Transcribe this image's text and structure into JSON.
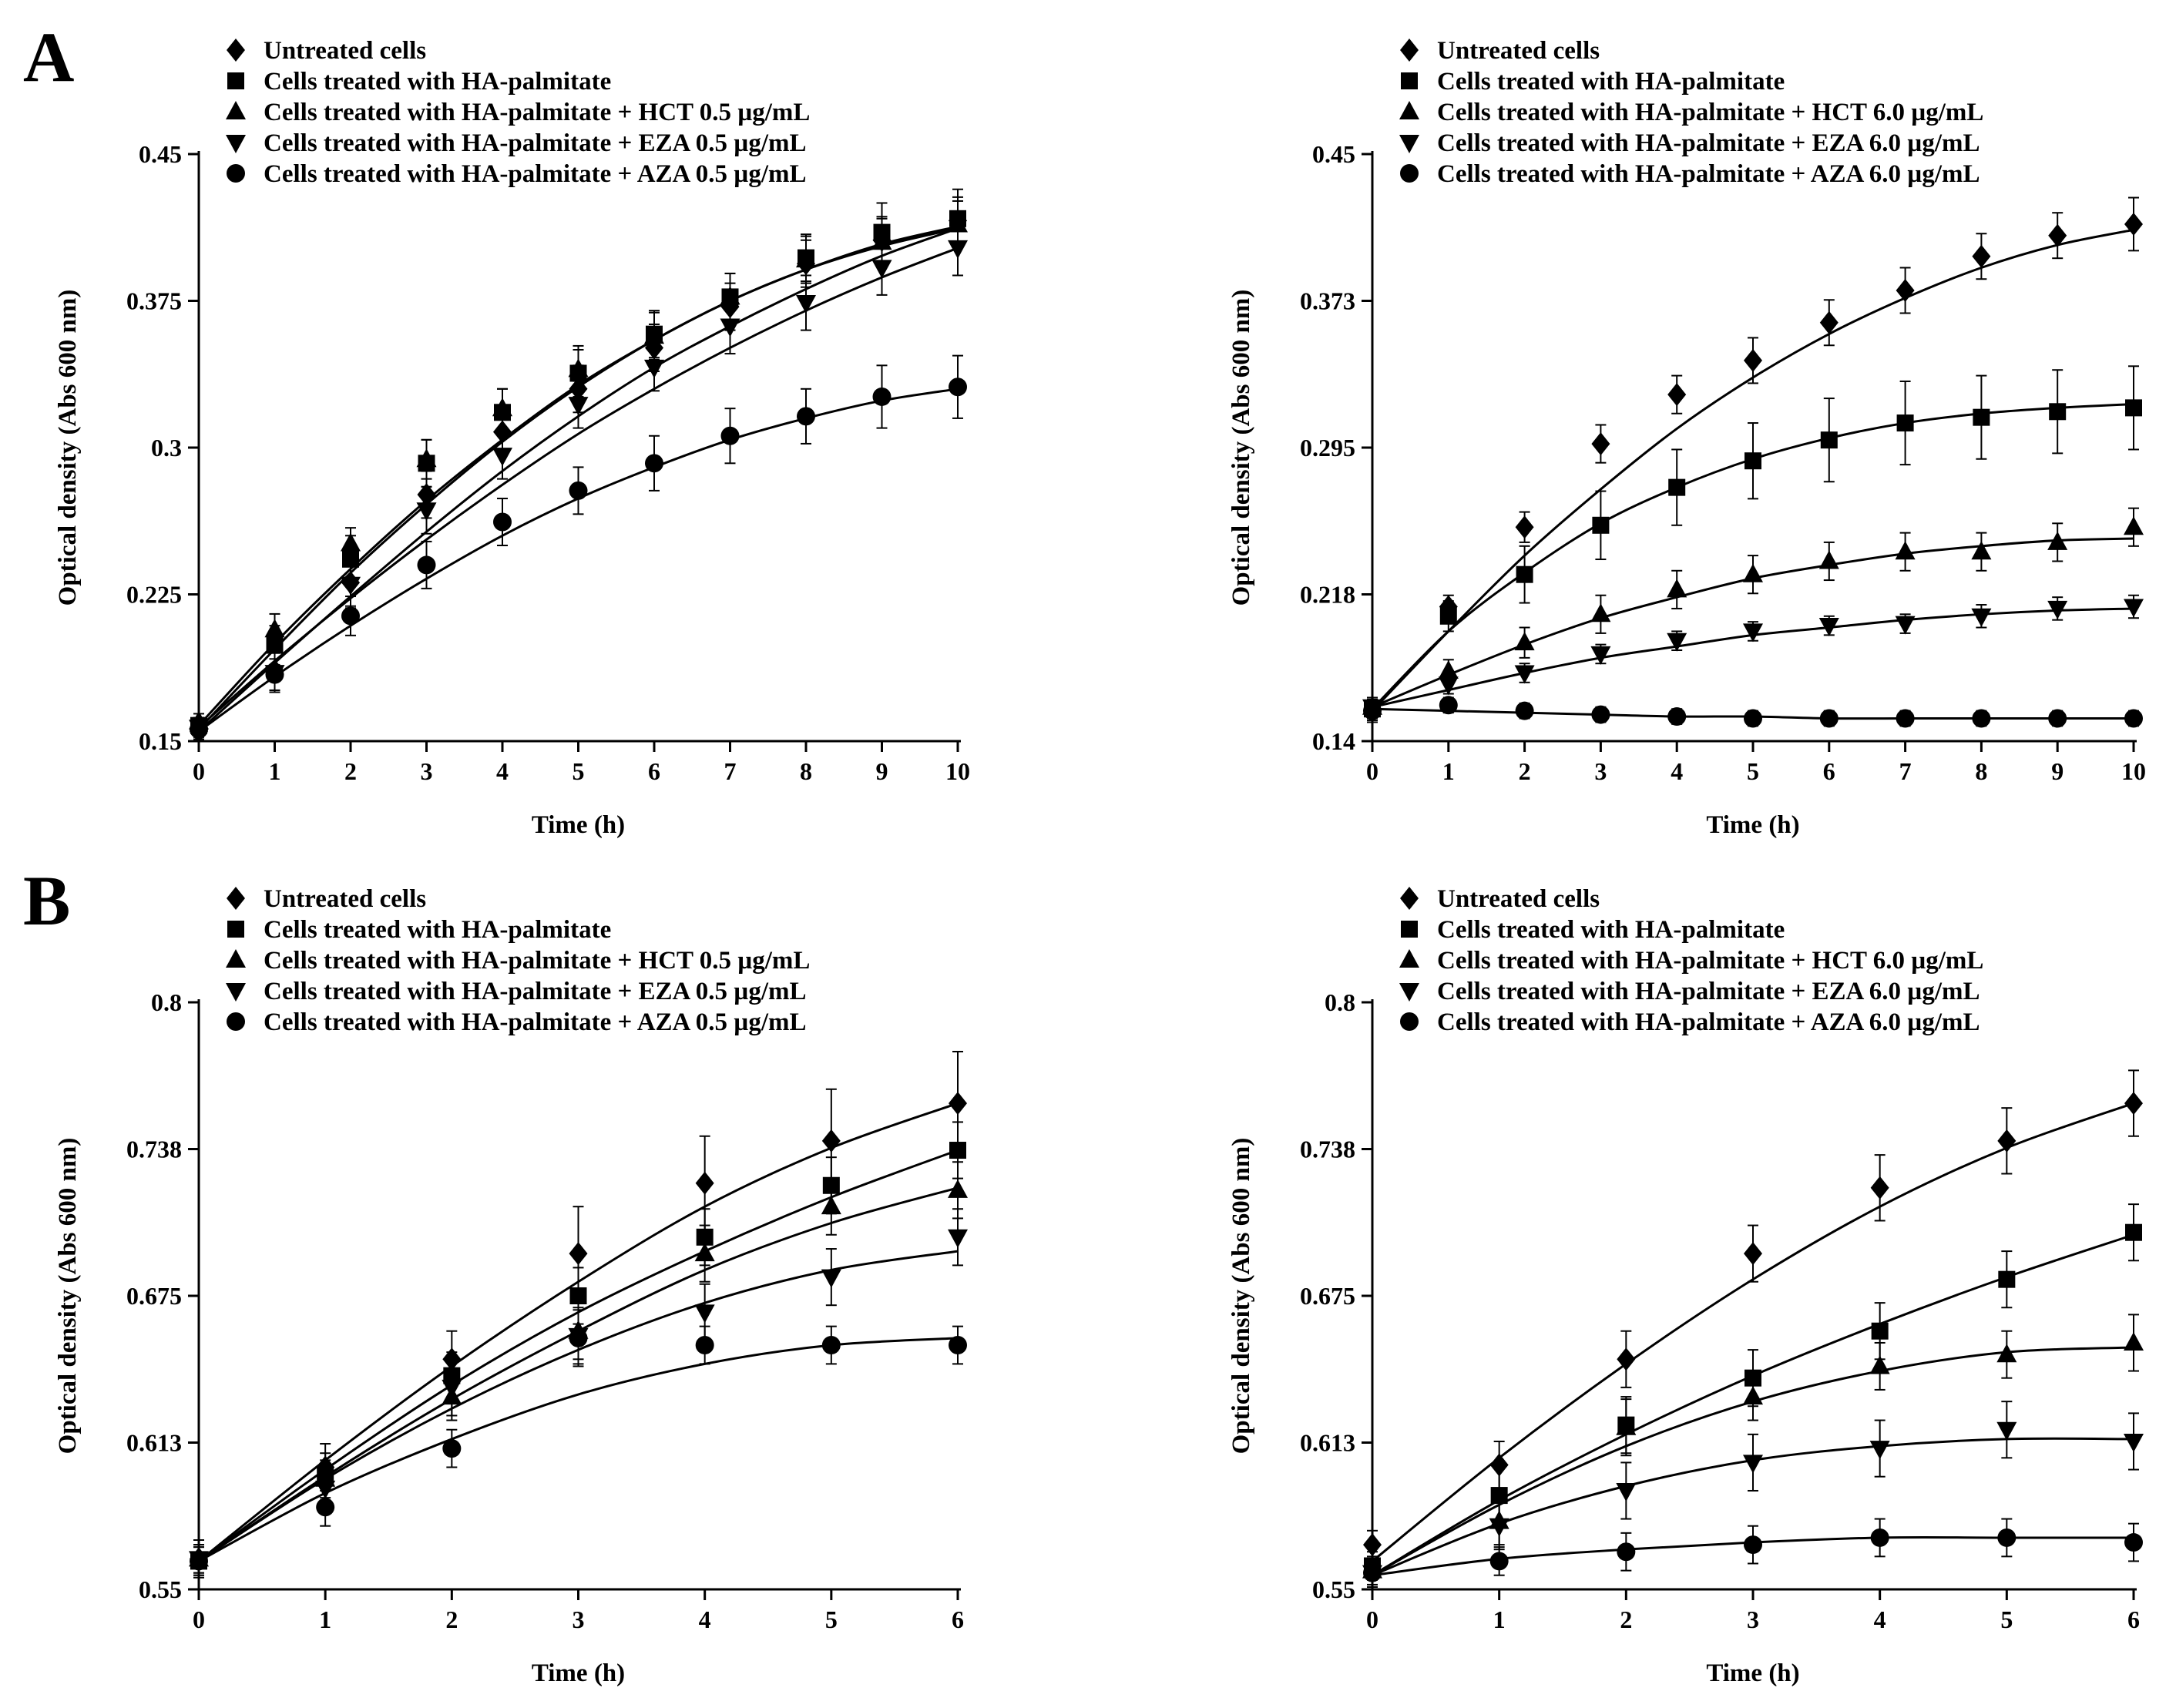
{
  "panel_labels": [
    "A",
    "B"
  ],
  "chart_data": [
    {
      "id": "A-left",
      "type": "line",
      "panel": "A",
      "title": "",
      "xlabel": "Time (h)",
      "ylabel": "Optical density (Abs 600 nm)",
      "xlim": [
        0,
        10
      ],
      "ylim": [
        0.15,
        0.45
      ],
      "xticks": [
        "0",
        "1",
        "2",
        "3",
        "4",
        "5",
        "6",
        "7",
        "8",
        "9",
        "10"
      ],
      "yticks": [
        "0.15",
        "0.225",
        "0.3",
        "0.375",
        "0.45"
      ],
      "legend": [
        "Untreated cells",
        "Cells treated with HA-palmitate",
        "Cells treated with HA-palmitate + HCT 0.5 µg/mL",
        "Cells treated with HA-palmitate + EZA 0.5 µg/mL",
        "Cells treated with HA-palmitate + AZA 0.5 µg/mL"
      ],
      "x": [
        0,
        1,
        2,
        3,
        4,
        5,
        6,
        7,
        8,
        9,
        10
      ],
      "series": [
        {
          "name": "Untreated cells",
          "marker": "diamond",
          "values": [
            0.155,
            0.186,
            0.231,
            0.276,
            0.308,
            0.33,
            0.351,
            0.372,
            0.394,
            0.406,
            0.416
          ],
          "errors": [
            0.004,
            0.01,
            0.012,
            0.012,
            0.012,
            0.012,
            0.012,
            0.012,
            0.012,
            0.012,
            0.012
          ]
        },
        {
          "name": "Cells treated with HA-palmitate",
          "marker": "square",
          "values": [
            0.158,
            0.199,
            0.243,
            0.292,
            0.318,
            0.338,
            0.358,
            0.377,
            0.397,
            0.41,
            0.417
          ],
          "errors": [
            0.004,
            0.01,
            0.012,
            0.012,
            0.012,
            0.012,
            0.012,
            0.012,
            0.012,
            0.015,
            0.015
          ]
        },
        {
          "name": "Cells treated with HA-palmitate + HCT 0.5 µg/mL",
          "marker": "triangle-up",
          "values": [
            0.16,
            0.207,
            0.251,
            0.294,
            0.32,
            0.34,
            0.357,
            0.377,
            0.396,
            0.405,
            0.414
          ],
          "errors": [
            0.004,
            0.008,
            0.008,
            0.01,
            0.01,
            0.012,
            0.012,
            0.012,
            0.012,
            0.012,
            0.012
          ]
        },
        {
          "name": "Cells treated with HA-palmitate + EZA 0.5 µg/mL",
          "marker": "triangle-down",
          "values": [
            0.157,
            0.185,
            0.23,
            0.268,
            0.296,
            0.322,
            0.341,
            0.362,
            0.374,
            0.392,
            0.402
          ],
          "errors": [
            0.004,
            0.01,
            0.012,
            0.012,
            0.012,
            0.012,
            0.012,
            0.014,
            0.014,
            0.014,
            0.014
          ]
        },
        {
          "name": "Cells treated with HA-palmitate + AZA 0.5 µg/mL",
          "marker": "circle",
          "values": [
            0.156,
            0.184,
            0.214,
            0.24,
            0.262,
            0.278,
            0.292,
            0.306,
            0.316,
            0.326,
            0.331
          ],
          "errors": [
            0.004,
            0.008,
            0.01,
            0.012,
            0.012,
            0.012,
            0.014,
            0.014,
            0.014,
            0.016,
            0.016
          ]
        }
      ],
      "fits": [
        [
          0.155,
          0.19,
          0.224,
          0.257,
          0.288,
          0.316,
          0.341,
          0.362,
          0.381,
          0.398,
          0.412
        ],
        [
          0.156,
          0.197,
          0.236,
          0.271,
          0.303,
          0.331,
          0.355,
          0.375,
          0.391,
          0.403,
          0.412
        ],
        [
          0.158,
          0.2,
          0.238,
          0.273,
          0.304,
          0.332,
          0.355,
          0.375,
          0.391,
          0.404,
          0.413
        ],
        [
          0.157,
          0.191,
          0.223,
          0.253,
          0.281,
          0.307,
          0.33,
          0.351,
          0.37,
          0.387,
          0.402
        ],
        [
          0.155,
          0.183,
          0.209,
          0.233,
          0.255,
          0.274,
          0.29,
          0.304,
          0.315,
          0.324,
          0.33
        ]
      ]
    },
    {
      "id": "A-right",
      "type": "line",
      "panel": "A",
      "title": "",
      "xlabel": "Time (h)",
      "ylabel": "Optical density (Abs 600 nm)",
      "xlim": [
        0,
        10
      ],
      "ylim": [
        0.14,
        0.45
      ],
      "xticks": [
        "0",
        "1",
        "2",
        "3",
        "4",
        "5",
        "6",
        "7",
        "8",
        "9",
        "10"
      ],
      "yticks": [
        "0.14",
        "0.218",
        "0.295",
        "0.373",
        "0.45"
      ],
      "legend": [
        "Untreated cells",
        "Cells treated with HA-palmitate",
        "Cells treated with HA-palmitate + HCT 6.0 µg/mL",
        "Cells treated with HA-palmitate + EZA 6.0 µg/mL",
        "Cells treated with HA-palmitate + AZA 6.0 µg/mL"
      ],
      "x": [
        0,
        1,
        2,
        3,
        4,
        5,
        6,
        7,
        8,
        9,
        10
      ],
      "series": [
        {
          "name": "Untreated cells",
          "marker": "diamond",
          "values": [
            0.156,
            0.211,
            0.253,
            0.297,
            0.323,
            0.341,
            0.361,
            0.378,
            0.396,
            0.407,
            0.413
          ],
          "errors": [
            0.006,
            0.006,
            0.008,
            0.01,
            0.01,
            0.012,
            0.012,
            0.012,
            0.012,
            0.012,
            0.014
          ]
        },
        {
          "name": "Cells treated with HA-palmitate",
          "marker": "square",
          "values": [
            0.157,
            0.206,
            0.228,
            0.254,
            0.274,
            0.288,
            0.299,
            0.308,
            0.311,
            0.314,
            0.316
          ],
          "errors": [
            0.006,
            0.008,
            0.015,
            0.018,
            0.02,
            0.02,
            0.022,
            0.022,
            0.022,
            0.022,
            0.022
          ]
        },
        {
          "name": "Cells treated with HA-palmitate + HCT 6.0 µg/mL",
          "marker": "triangle-up",
          "values": [
            0.158,
            0.177,
            0.192,
            0.207,
            0.22,
            0.228,
            0.235,
            0.24,
            0.24,
            0.245,
            0.253
          ],
          "errors": [
            0.004,
            0.006,
            0.008,
            0.01,
            0.01,
            0.01,
            0.01,
            0.01,
            0.01,
            0.01,
            0.01
          ]
        },
        {
          "name": "Cells treated with HA-palmitate + EZA 6.0 µg/mL",
          "marker": "triangle-down",
          "values": [
            0.158,
            0.17,
            0.176,
            0.186,
            0.193,
            0.198,
            0.201,
            0.202,
            0.206,
            0.21,
            0.211
          ],
          "errors": [
            0.004,
            0.005,
            0.005,
            0.005,
            0.005,
            0.005,
            0.005,
            0.005,
            0.006,
            0.006,
            0.006
          ]
        },
        {
          "name": "Cells treated with HA-palmitate + AZA 6.0 µg/mL",
          "marker": "circle",
          "values": [
            0.156,
            0.159,
            0.156,
            0.154,
            0.153,
            0.152,
            0.152,
            0.152,
            0.152,
            0.152,
            0.152
          ],
          "errors": [
            0.004,
            0.004,
            0.004,
            0.004,
            0.004,
            0.004,
            0.004,
            0.004,
            0.004,
            0.004,
            0.004
          ]
        }
      ],
      "fits": [
        [
          0.156,
          0.198,
          0.238,
          0.273,
          0.305,
          0.332,
          0.355,
          0.374,
          0.39,
          0.402,
          0.41
        ],
        [
          0.157,
          0.198,
          0.229,
          0.255,
          0.274,
          0.289,
          0.3,
          0.308,
          0.313,
          0.316,
          0.318
        ],
        [
          0.158,
          0.175,
          0.191,
          0.205,
          0.216,
          0.226,
          0.233,
          0.239,
          0.243,
          0.246,
          0.247
        ],
        [
          0.158,
          0.167,
          0.176,
          0.184,
          0.19,
          0.196,
          0.2,
          0.204,
          0.207,
          0.209,
          0.21
        ],
        [
          0.157,
          0.156,
          0.155,
          0.154,
          0.153,
          0.153,
          0.152,
          0.152,
          0.152,
          0.152,
          0.152
        ]
      ]
    },
    {
      "id": "B-left",
      "type": "line",
      "panel": "B",
      "title": "",
      "xlabel": "Time (h)",
      "ylabel": "Optical density (Abs 600 nm)",
      "xlim": [
        0,
        6
      ],
      "ylim": [
        0.55,
        0.8
      ],
      "xticks": [
        "0",
        "1",
        "2",
        "3",
        "4",
        "5",
        "6"
      ],
      "yticks": [
        "0.55",
        "0.613",
        "0.675",
        "0.738",
        "0.8"
      ],
      "legend": [
        "Untreated cells",
        "Cells treated with HA-palmitate",
        "Cells treated with HA-palmitate + HCT 0.5 µg/mL",
        "Cells treated with HA-palmitate + EZA 0.5 µg/mL",
        "Cells treated with HA-palmitate + AZA 0.5 µg/mL"
      ],
      "x": [
        0,
        1,
        2,
        3,
        4,
        5,
        6
      ],
      "series": [
        {
          "name": "Untreated cells",
          "marker": "diamond",
          "values": [
            0.563,
            0.602,
            0.648,
            0.693,
            0.723,
            0.741,
            0.757
          ],
          "errors": [
            0.008,
            0.01,
            0.012,
            0.02,
            0.02,
            0.022,
            0.022
          ]
        },
        {
          "name": "Cells treated with HA-palmitate",
          "marker": "square",
          "values": [
            0.562,
            0.598,
            0.641,
            0.675,
            0.7,
            0.722,
            0.737
          ],
          "errors": [
            0.006,
            0.01,
            0.01,
            0.012,
            0.012,
            0.012,
            0.012
          ]
        },
        {
          "name": "Cells treated with HA-palmitate + HCT 0.5 µg/mL",
          "marker": "triangle-up",
          "values": [
            0.563,
            0.597,
            0.632,
            0.66,
            0.693,
            0.713,
            0.72
          ],
          "errors": [
            0.006,
            0.008,
            0.01,
            0.012,
            0.012,
            0.012,
            0.012
          ]
        },
        {
          "name": "Cells treated with HA-palmitate + EZA 0.5 µg/mL",
          "marker": "triangle-down",
          "values": [
            0.563,
            0.593,
            0.636,
            0.658,
            0.668,
            0.683,
            0.7
          ],
          "errors": [
            0.006,
            0.01,
            0.012,
            0.012,
            0.012,
            0.012,
            0.012
          ]
        },
        {
          "name": "Cells treated with HA-palmitate + AZA 0.5 µg/mL",
          "marker": "circle",
          "values": [
            0.562,
            0.585,
            0.61,
            0.657,
            0.654,
            0.654,
            0.654
          ],
          "errors": [
            0.006,
            0.008,
            0.008,
            0.012,
            0.008,
            0.008,
            0.008
          ]
        }
      ],
      "fits": [
        [
          0.562,
          0.605,
          0.645,
          0.681,
          0.713,
          0.738,
          0.757
        ],
        [
          0.562,
          0.601,
          0.637,
          0.668,
          0.694,
          0.717,
          0.737
        ],
        [
          0.562,
          0.598,
          0.631,
          0.66,
          0.686,
          0.706,
          0.721
        ],
        [
          0.562,
          0.597,
          0.627,
          0.652,
          0.672,
          0.686,
          0.694
        ],
        [
          0.562,
          0.591,
          0.614,
          0.633,
          0.646,
          0.654,
          0.657
        ]
      ]
    },
    {
      "id": "B-right",
      "type": "line",
      "panel": "B",
      "title": "",
      "xlabel": "Time (h)",
      "ylabel": "Optical density (Abs 600 nm)",
      "xlim": [
        0,
        6
      ],
      "ylim": [
        0.55,
        0.8
      ],
      "xticks": [
        "0",
        "1",
        "2",
        "3",
        "4",
        "5",
        "6"
      ],
      "yticks": [
        "0.55",
        "0.613",
        "0.675",
        "0.738",
        "0.8"
      ],
      "legend": [
        "Untreated cells",
        "Cells treated with HA-palmitate",
        "Cells treated with HA-palmitate + HCT 6.0 µg/mL",
        "Cells treated with HA-palmitate + EZA 6.0 µg/mL",
        "Cells treated with HA-palmitate + AZA 6.0 µg/mL"
      ],
      "x": [
        0,
        1,
        2,
        3,
        4,
        5,
        6
      ],
      "series": [
        {
          "name": "Untreated cells",
          "marker": "diamond",
          "values": [
            0.569,
            0.603,
            0.648,
            0.693,
            0.721,
            0.741,
            0.757
          ],
          "errors": [
            0.006,
            0.01,
            0.012,
            0.012,
            0.014,
            0.014,
            0.014
          ]
        },
        {
          "name": "Cells treated with HA-palmitate",
          "marker": "square",
          "values": [
            0.56,
            0.59,
            0.62,
            0.64,
            0.66,
            0.682,
            0.702
          ],
          "errors": [
            0.006,
            0.012,
            0.012,
            0.012,
            0.012,
            0.012,
            0.012
          ]
        },
        {
          "name": "Cells treated with HA-palmitate + HCT 6.0 µg/mL",
          "marker": "triangle-up",
          "values": [
            0.558,
            0.579,
            0.619,
            0.632,
            0.645,
            0.65,
            0.655
          ],
          "errors": [
            0.006,
            0.01,
            0.012,
            0.01,
            0.01,
            0.01,
            0.012
          ]
        },
        {
          "name": "Cells treated with HA-palmitate + EZA 6.0 µg/mL",
          "marker": "triangle-down",
          "values": [
            0.557,
            0.577,
            0.592,
            0.604,
            0.61,
            0.618,
            0.613
          ],
          "errors": [
            0.006,
            0.01,
            0.012,
            0.012,
            0.012,
            0.012,
            0.012
          ]
        },
        {
          "name": "Cells treated with HA-palmitate + AZA 6.0 µg/mL",
          "marker": "circle",
          "values": [
            0.557,
            0.562,
            0.566,
            0.569,
            0.572,
            0.572,
            0.57
          ],
          "errors": [
            0.006,
            0.006,
            0.008,
            0.008,
            0.008,
            0.008,
            0.008
          ]
        }
      ],
      "fits": [
        [
          0.562,
          0.606,
          0.646,
          0.682,
          0.713,
          0.738,
          0.757
        ],
        [
          0.556,
          0.588,
          0.616,
          0.641,
          0.663,
          0.683,
          0.701
        ],
        [
          0.556,
          0.586,
          0.611,
          0.63,
          0.643,
          0.651,
          0.653
        ],
        [
          0.556,
          0.578,
          0.594,
          0.605,
          0.611,
          0.614,
          0.614
        ],
        [
          0.556,
          0.563,
          0.567,
          0.57,
          0.572,
          0.572,
          0.572
        ]
      ]
    }
  ]
}
